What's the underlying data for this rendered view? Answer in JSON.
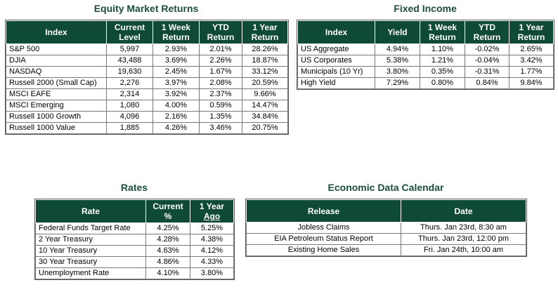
{
  "equity": {
    "title": "Equity Market Returns",
    "headers": [
      "Index",
      "Current Level",
      "1 Week Return",
      "YTD Return",
      "1 Year Return"
    ],
    "rows": [
      [
        "S&P 500",
        "5,997",
        "2.93%",
        "2.01%",
        "28.26%"
      ],
      [
        "DJIA",
        "43,488",
        "3.69%",
        "2.26%",
        "18.87%"
      ],
      [
        "NASDAQ",
        "19,630",
        "2.45%",
        "1.67%",
        "33.12%"
      ],
      [
        "Russell 2000 (Small Cap)",
        "2,276",
        "3.97%",
        "2.08%",
        "20.59%"
      ],
      [
        "MSCI EAFE",
        "2,314",
        "3.92%",
        "2.37%",
        "9.66%"
      ],
      [
        "MSCI Emerging",
        "1,080",
        "4.00%",
        "0.59%",
        "14.47%"
      ],
      [
        "Russell 1000 Growth",
        "4,096",
        "2.16%",
        "1.35%",
        "34.84%"
      ],
      [
        "Russell 1000 Value",
        "1,885",
        "4.26%",
        "3.46%",
        "20.75%"
      ]
    ]
  },
  "fixed_income": {
    "title": "Fixed Income",
    "headers": [
      "Index",
      "Yield",
      "1 Week Return",
      "YTD Return",
      "1 Year Return"
    ],
    "rows": [
      [
        "US Aggregate",
        "4.94%",
        "1.10%",
        "-0.02%",
        "2.65%"
      ],
      [
        "US Corporates",
        "5.38%",
        "1.21%",
        "-0.04%",
        "3.42%"
      ],
      [
        "Municipals (10 Yr)",
        "3.80%",
        "0.35%",
        "-0.31%",
        "1.77%"
      ],
      [
        "High Yield",
        "7.29%",
        "0.80%",
        "0.84%",
        "9.84%"
      ]
    ]
  },
  "rates": {
    "title": "Rates",
    "headers": [
      "Rate",
      "Current %",
      "1 Year Ago"
    ],
    "header_lines": {
      "current_1": "Current",
      "current_2": "%",
      "ago_1": "1 Year",
      "ago_2": "Ago"
    },
    "rows": [
      [
        "Federal Funds Target Rate",
        "4.25%",
        "5.25%"
      ],
      [
        "2 Year Treasury",
        "4.28%",
        "4.38%"
      ],
      [
        "10 Year Treasury",
        "4.63%",
        "4.12%"
      ],
      [
        "30 Year Treasury",
        "4.86%",
        "4.33%"
      ],
      [
        "Unemployment Rate",
        "4.10%",
        "3.80%"
      ]
    ]
  },
  "calendar": {
    "title": "Economic Data Calendar",
    "headers": [
      "Release",
      "Date"
    ],
    "rows": [
      [
        "Jobless Claims",
        "Thurs. Jan 23rd, 8:30 am"
      ],
      [
        "EIA Petroleum Status Report",
        "Thurs. Jan 23rd, 12:00 pm"
      ],
      [
        "Existing Home Sales",
        "Fri. Jan 24th, 10:00 am"
      ]
    ]
  },
  "colors": {
    "header_bg": "#0f4a37",
    "title_text": "#1a4d3a"
  }
}
